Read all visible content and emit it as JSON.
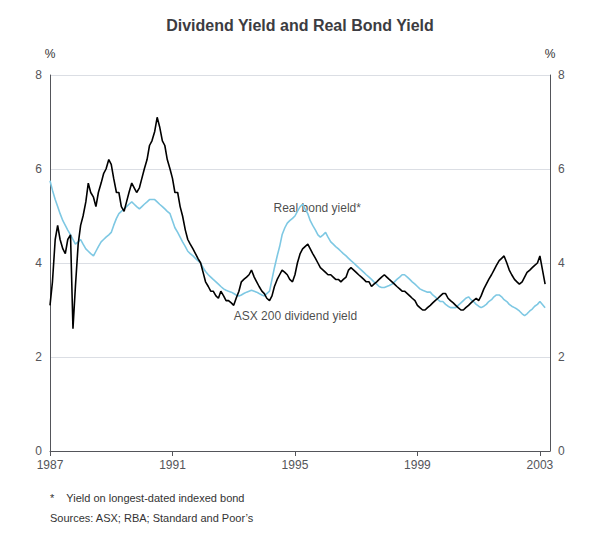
{
  "chart_data": {
    "type": "line",
    "title": "Dividend Yield and Real Bond Yield",
    "ylabel": "%",
    "y2label": "%",
    "xlim": [
      1987.0,
      2003.33
    ],
    "xticks": [
      1987,
      1991,
      1995,
      1999,
      2003
    ],
    "ylim": [
      0,
      8
    ],
    "yticks": [
      0,
      2,
      4,
      6,
      8
    ],
    "y2lim": [
      0,
      8
    ],
    "y2ticks": [
      0,
      2,
      4,
      6,
      8
    ],
    "grid": true,
    "x": [
      1987.0,
      1987.08,
      1987.17,
      1987.25,
      1987.33,
      1987.42,
      1987.5,
      1987.58,
      1987.67,
      1987.75,
      1987.83,
      1987.92,
      1988.0,
      1988.08,
      1988.17,
      1988.25,
      1988.33,
      1988.42,
      1988.5,
      1988.58,
      1988.67,
      1988.75,
      1988.83,
      1988.92,
      1989.0,
      1989.08,
      1989.17,
      1989.25,
      1989.33,
      1989.42,
      1989.5,
      1989.58,
      1989.67,
      1989.75,
      1989.83,
      1989.92,
      1990.0,
      1990.08,
      1990.17,
      1990.25,
      1990.33,
      1990.42,
      1990.5,
      1990.58,
      1990.67,
      1990.75,
      1990.83,
      1990.92,
      1991.0,
      1991.08,
      1991.17,
      1991.25,
      1991.33,
      1991.42,
      1991.5,
      1991.58,
      1991.67,
      1991.75,
      1991.83,
      1991.92,
      1992.0,
      1992.08,
      1992.17,
      1992.25,
      1992.33,
      1992.42,
      1992.5,
      1992.58,
      1992.67,
      1992.75,
      1992.83,
      1992.92,
      1993.0,
      1993.08,
      1993.17,
      1993.25,
      1993.33,
      1993.42,
      1993.5,
      1993.58,
      1993.67,
      1993.75,
      1993.83,
      1993.92,
      1994.0,
      1994.08,
      1994.17,
      1994.25,
      1994.33,
      1994.42,
      1994.5,
      1994.58,
      1994.67,
      1994.75,
      1994.83,
      1994.92,
      1995.0,
      1995.08,
      1995.17,
      1995.25,
      1995.33,
      1995.42,
      1995.5,
      1995.58,
      1995.67,
      1995.75,
      1995.83,
      1995.92,
      1996.0,
      1996.08,
      1996.17,
      1996.25,
      1996.33,
      1996.42,
      1996.5,
      1996.58,
      1996.67,
      1996.75,
      1996.83,
      1996.92,
      1997.0,
      1997.08,
      1997.17,
      1997.25,
      1997.33,
      1997.42,
      1997.5,
      1997.58,
      1997.67,
      1997.75,
      1997.83,
      1997.92,
      1998.0,
      1998.08,
      1998.17,
      1998.25,
      1998.33,
      1998.42,
      1998.5,
      1998.58,
      1998.67,
      1998.75,
      1998.83,
      1998.92,
      1999.0,
      1999.08,
      1999.17,
      1999.25,
      1999.33,
      1999.42,
      1999.5,
      1999.58,
      1999.67,
      1999.75,
      1999.83,
      1999.92,
      2000.0,
      2000.08,
      2000.17,
      2000.25,
      2000.33,
      2000.42,
      2000.5,
      2000.58,
      2000.67,
      2000.75,
      2000.83,
      2000.92,
      2001.0,
      2001.08,
      2001.17,
      2001.25,
      2001.33,
      2001.42,
      2001.5,
      2001.58,
      2001.67,
      2001.75,
      2001.83,
      2001.92,
      2002.0,
      2002.08,
      2002.17,
      2002.25,
      2002.33,
      2002.42,
      2002.5,
      2002.58,
      2002.67,
      2002.75,
      2002.83,
      2002.92,
      2003.0,
      2003.17
    ],
    "series": [
      {
        "color": "#7ec8e3",
        "values": [
          5.75,
          5.55,
          5.35,
          5.2,
          5.05,
          4.9,
          4.8,
          4.7,
          4.6,
          4.5,
          4.4,
          4.45,
          4.5,
          4.4,
          4.3,
          4.25,
          4.2,
          4.15,
          4.25,
          4.35,
          4.45,
          4.5,
          4.55,
          4.6,
          4.65,
          4.8,
          4.95,
          5.05,
          5.1,
          5.15,
          5.2,
          5.25,
          5.3,
          5.25,
          5.2,
          5.15,
          5.2,
          5.25,
          5.3,
          5.35,
          5.35,
          5.35,
          5.3,
          5.25,
          5.2,
          5.15,
          5.1,
          5.05,
          4.9,
          4.75,
          4.65,
          4.55,
          4.45,
          4.35,
          4.25,
          4.2,
          4.15,
          4.1,
          4.05,
          4.0,
          3.9,
          3.82,
          3.75,
          3.7,
          3.65,
          3.6,
          3.55,
          3.5,
          3.45,
          3.42,
          3.4,
          3.38,
          3.35,
          3.32,
          3.3,
          3.32,
          3.35,
          3.38,
          3.4,
          3.42,
          3.4,
          3.38,
          3.35,
          3.32,
          3.3,
          3.35,
          3.4,
          3.65,
          3.9,
          4.15,
          4.35,
          4.6,
          4.75,
          4.85,
          4.9,
          4.95,
          5.0,
          5.1,
          5.2,
          5.25,
          5.15,
          5.05,
          4.9,
          4.8,
          4.7,
          4.6,
          4.55,
          4.6,
          4.65,
          4.55,
          4.45,
          4.4,
          4.35,
          4.3,
          4.25,
          4.2,
          4.15,
          4.1,
          4.05,
          4.0,
          3.95,
          3.9,
          3.85,
          3.8,
          3.75,
          3.7,
          3.65,
          3.6,
          3.55,
          3.5,
          3.48,
          3.48,
          3.5,
          3.52,
          3.55,
          3.6,
          3.65,
          3.7,
          3.75,
          3.75,
          3.7,
          3.65,
          3.6,
          3.55,
          3.5,
          3.45,
          3.42,
          3.4,
          3.38,
          3.38,
          3.32,
          3.28,
          3.22,
          3.18,
          3.18,
          3.12,
          3.08,
          3.05,
          3.05,
          3.05,
          3.1,
          3.15,
          3.2,
          3.25,
          3.28,
          3.22,
          3.18,
          3.12,
          3.08,
          3.05,
          3.08,
          3.12,
          3.18,
          3.22,
          3.28,
          3.32,
          3.32,
          3.28,
          3.22,
          3.18,
          3.12,
          3.08,
          3.05,
          3.02,
          2.98,
          2.92,
          2.88,
          2.92,
          2.98,
          3.02,
          3.08,
          3.12,
          3.18,
          3.05
        ]
      },
      {
        "color": "#000000",
        "values": [
          3.1,
          3.6,
          4.5,
          4.8,
          4.5,
          4.3,
          4.2,
          4.5,
          4.6,
          2.6,
          3.5,
          4.4,
          4.8,
          5.0,
          5.3,
          5.7,
          5.5,
          5.4,
          5.2,
          5.5,
          5.7,
          5.9,
          6.0,
          6.2,
          6.1,
          5.8,
          5.5,
          5.5,
          5.2,
          5.1,
          5.3,
          5.5,
          5.7,
          5.6,
          5.5,
          5.6,
          5.8,
          6.0,
          6.2,
          6.5,
          6.6,
          6.8,
          7.1,
          6.9,
          6.6,
          6.5,
          6.2,
          6.0,
          5.8,
          5.5,
          5.5,
          5.2,
          5.0,
          4.7,
          4.5,
          4.4,
          4.3,
          4.2,
          4.1,
          4.0,
          3.8,
          3.6,
          3.5,
          3.4,
          3.4,
          3.3,
          3.25,
          3.4,
          3.3,
          3.2,
          3.2,
          3.15,
          3.1,
          3.25,
          3.4,
          3.6,
          3.65,
          3.7,
          3.75,
          3.85,
          3.7,
          3.6,
          3.5,
          3.4,
          3.35,
          3.25,
          3.2,
          3.3,
          3.5,
          3.65,
          3.75,
          3.85,
          3.8,
          3.75,
          3.65,
          3.6,
          3.75,
          4.0,
          4.2,
          4.3,
          4.35,
          4.4,
          4.3,
          4.2,
          4.1,
          4.0,
          3.9,
          3.85,
          3.8,
          3.75,
          3.75,
          3.7,
          3.65,
          3.65,
          3.6,
          3.65,
          3.7,
          3.85,
          3.9,
          3.85,
          3.8,
          3.75,
          3.7,
          3.65,
          3.6,
          3.6,
          3.5,
          3.55,
          3.6,
          3.65,
          3.7,
          3.75,
          3.7,
          3.65,
          3.6,
          3.55,
          3.5,
          3.45,
          3.4,
          3.4,
          3.35,
          3.3,
          3.25,
          3.2,
          3.1,
          3.05,
          3.0,
          3.0,
          3.05,
          3.1,
          3.15,
          3.2,
          3.25,
          3.3,
          3.35,
          3.35,
          3.25,
          3.2,
          3.15,
          3.1,
          3.05,
          3.0,
          3.0,
          3.05,
          3.1,
          3.15,
          3.2,
          3.25,
          3.2,
          3.3,
          3.45,
          3.55,
          3.65,
          3.75,
          3.85,
          3.95,
          4.05,
          4.1,
          4.15,
          4.0,
          3.85,
          3.75,
          3.65,
          3.6,
          3.55,
          3.6,
          3.7,
          3.8,
          3.85,
          3.9,
          3.95,
          4.0,
          4.15,
          3.55
        ]
      }
    ],
    "annotations": [
      {
        "text": "Real bond yield*",
        "x": 1994.3,
        "y": 5.05
      },
      {
        "text": "ASX 200 dividend yield",
        "x": 1993.0,
        "y": 2.75
      }
    ],
    "footnotes": [
      "*    Yield on longest-dated indexed bond",
      "Sources: ASX; RBA; Standard and Poor’s"
    ]
  }
}
